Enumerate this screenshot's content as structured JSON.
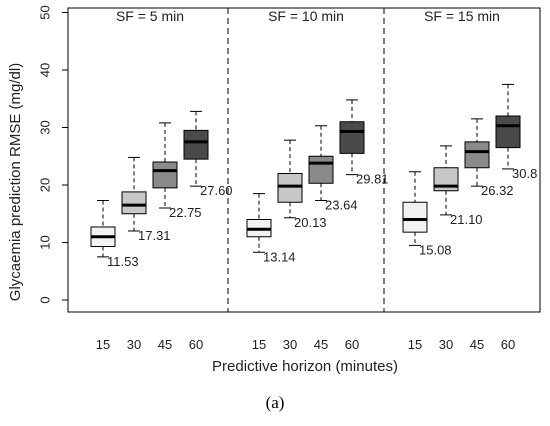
{
  "chart_data": {
    "type": "boxplot",
    "ylabel": "Glycaemia prediction RMSE (mg/dl)",
    "xlabel": "Predictive horizon (minutes)",
    "ylim": [
      0,
      50
    ],
    "yticks": [
      0,
      10,
      20,
      30,
      40,
      50
    ],
    "grid": false,
    "panels": [
      {
        "label": "SF = 5 min",
        "groups": [
          {
            "horizon": "15",
            "min": 7.5,
            "q1": 9.3,
            "median": 11.0,
            "q3": 12.7,
            "max": 17.3,
            "mean_label": "11.53",
            "fill": "#f2f2f2"
          },
          {
            "horizon": "30",
            "min": 12.0,
            "q1": 15.0,
            "median": 16.5,
            "q3": 18.8,
            "max": 24.8,
            "mean_label": "17.31",
            "fill": "#c8c8c8"
          },
          {
            "horizon": "45",
            "min": 16.0,
            "q1": 19.5,
            "median": 22.5,
            "q3": 24.0,
            "max": 30.8,
            "mean_label": "22.75",
            "fill": "#8a8a8a"
          },
          {
            "horizon": "60",
            "min": 19.8,
            "q1": 24.5,
            "median": 27.5,
            "q3": 29.5,
            "max": 32.8,
            "mean_label": "27.60",
            "fill": "#4a4a4a"
          }
        ]
      },
      {
        "label": "SF = 10 min",
        "groups": [
          {
            "horizon": "15",
            "min": 8.3,
            "q1": 11.0,
            "median": 12.3,
            "q3": 14.0,
            "max": 18.5,
            "mean_label": "13.14",
            "fill": "#f2f2f2"
          },
          {
            "horizon": "30",
            "min": 14.3,
            "q1": 17.0,
            "median": 19.8,
            "q3": 22.0,
            "max": 27.8,
            "mean_label": "20.13",
            "fill": "#c8c8c8"
          },
          {
            "horizon": "45",
            "min": 17.3,
            "q1": 20.3,
            "median": 23.8,
            "q3": 25.0,
            "max": 30.3,
            "mean_label": "23.64",
            "fill": "#8a8a8a"
          },
          {
            "horizon": "60",
            "min": 21.8,
            "q1": 25.5,
            "median": 29.3,
            "q3": 31.0,
            "max": 34.8,
            "mean_label": "29.81",
            "fill": "#4a4a4a"
          }
        ]
      },
      {
        "label": "SF = 15 min",
        "groups": [
          {
            "horizon": "15",
            "min": 9.5,
            "q1": 11.8,
            "median": 14.0,
            "q3": 17.0,
            "max": 22.3,
            "mean_label": "15.08",
            "fill": "#f2f2f2"
          },
          {
            "horizon": "30",
            "min": 14.8,
            "q1": 19.0,
            "median": 19.8,
            "q3": 23.0,
            "max": 26.8,
            "mean_label": "21.10",
            "fill": "#c8c8c8"
          },
          {
            "horizon": "45",
            "min": 19.8,
            "q1": 23.0,
            "median": 25.8,
            "q3": 27.5,
            "max": 31.5,
            "mean_label": "26.32",
            "fill": "#8a8a8a"
          },
          {
            "horizon": "60",
            "min": 22.8,
            "q1": 26.5,
            "median": 30.3,
            "q3": 32.0,
            "max": 37.5,
            "mean_label": "30.8",
            "fill": "#4a4a4a"
          }
        ]
      }
    ]
  },
  "caption": "(a)"
}
